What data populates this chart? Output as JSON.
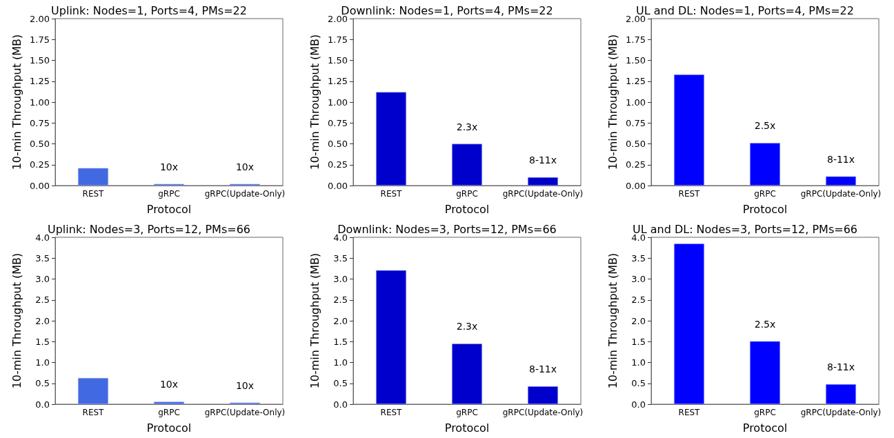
{
  "chart_data": [
    {
      "type": "bar",
      "title": "Uplink: Nodes=1, Ports=4, PMs=22",
      "xlabel": "Protocol",
      "ylabel": "10-min Throughput (MB)",
      "categories": [
        "REST",
        "gRPC",
        "gRPC(Update-Only)"
      ],
      "values": [
        0.21,
        0.02,
        0.02
      ],
      "color": "#4169e1",
      "ylim": [
        0,
        2
      ],
      "yticks": [
        {
          "value": 0,
          "label": "0.00"
        },
        {
          "value": 0.25,
          "label": "0.25"
        },
        {
          "value": 0.5,
          "label": "0.50"
        },
        {
          "value": 0.75,
          "label": "0.75"
        },
        {
          "value": 1,
          "label": "1.00"
        },
        {
          "value": 1.25,
          "label": "1.25"
        },
        {
          "value": 1.5,
          "label": "1.50"
        },
        {
          "value": 1.75,
          "label": "1.75"
        },
        {
          "value": 2,
          "label": "2.00"
        }
      ],
      "grid": false,
      "annotations": [
        "10x",
        "10x"
      ]
    },
    {
      "type": "bar",
      "title": "Downlink: Nodes=1, Ports=4, PMs=22",
      "xlabel": "Protocol",
      "ylabel": "10-min Throughput (MB)",
      "categories": [
        "REST",
        "gRPC",
        "gRPC(Update-Only)"
      ],
      "values": [
        1.12,
        0.5,
        0.1
      ],
      "color": "#0000cd",
      "ylim": [
        0,
        2
      ],
      "yticks": [
        {
          "value": 0,
          "label": "0.00"
        },
        {
          "value": 0.25,
          "label": "0.25"
        },
        {
          "value": 0.5,
          "label": "0.50"
        },
        {
          "value": 0.75,
          "label": "0.75"
        },
        {
          "value": 1,
          "label": "1.00"
        },
        {
          "value": 1.25,
          "label": "1.25"
        },
        {
          "value": 1.5,
          "label": "1.50"
        },
        {
          "value": 1.75,
          "label": "1.75"
        },
        {
          "value": 2,
          "label": "2.00"
        }
      ],
      "grid": false,
      "annotations": [
        "2.3x",
        "8-11x"
      ]
    },
    {
      "type": "bar",
      "title": "UL and DL: Nodes=1, Ports=4, PMs=22",
      "xlabel": "Protocol",
      "ylabel": "10-min Throughput (MB)",
      "categories": [
        "REST",
        "gRPC",
        "gRPC(Update-Only)"
      ],
      "values": [
        1.33,
        0.51,
        0.11
      ],
      "color": "#0000ff",
      "ylim": [
        0,
        2
      ],
      "yticks": [
        {
          "value": 0,
          "label": "0.00"
        },
        {
          "value": 0.25,
          "label": "0.25"
        },
        {
          "value": 0.5,
          "label": "0.50"
        },
        {
          "value": 0.75,
          "label": "0.75"
        },
        {
          "value": 1,
          "label": "1.00"
        },
        {
          "value": 1.25,
          "label": "1.25"
        },
        {
          "value": 1.5,
          "label": "1.50"
        },
        {
          "value": 1.75,
          "label": "1.75"
        },
        {
          "value": 2,
          "label": "2.00"
        }
      ],
      "grid": false,
      "annotations": [
        "2.5x",
        "8-11x"
      ]
    },
    {
      "type": "bar",
      "title": "Uplink: Nodes=3, Ports=12, PMs=66",
      "xlabel": "Protocol",
      "ylabel": "10-min Throughput (MB)",
      "categories": [
        "REST",
        "gRPC",
        "gRPC(Update-Only)"
      ],
      "values": [
        0.63,
        0.06,
        0.04
      ],
      "color": "#4169e1",
      "ylim": [
        0,
        4
      ],
      "yticks": [
        {
          "value": 0,
          "label": "0.0"
        },
        0.5,
        {
          "value": 1,
          "label": "1.0"
        },
        1.5,
        {
          "value": 2,
          "label": "2.0"
        },
        2.5,
        {
          "value": 3,
          "label": "3.0"
        },
        3.5,
        {
          "value": 4,
          "label": "4.0"
        }
      ],
      "grid": false,
      "annotations": [
        "10x",
        "10x"
      ]
    },
    {
      "type": "bar",
      "title": "Downlink: Nodes=3, Ports=12, PMs=66",
      "xlabel": "Protocol",
      "ylabel": "10-min Throughput (MB)",
      "categories": [
        "REST",
        "gRPC",
        "gRPC(Update-Only)"
      ],
      "values": [
        3.21,
        1.45,
        0.43
      ],
      "color": "#0000cd",
      "ylim": [
        0,
        4
      ],
      "yticks": [
        {
          "value": 0,
          "label": "0.0"
        },
        0.5,
        {
          "value": 1,
          "label": "1.0"
        },
        1.5,
        {
          "value": 2,
          "label": "2.0"
        },
        2.5,
        {
          "value": 3,
          "label": "3.0"
        },
        3.5,
        {
          "value": 4,
          "label": "4.0"
        }
      ],
      "grid": false,
      "annotations": [
        "2.3x",
        "8-11x"
      ]
    },
    {
      "type": "bar",
      "title": "UL and DL: Nodes=3, Ports=12, PMs=66",
      "xlabel": "Protocol",
      "ylabel": "10-min Throughput (MB)",
      "categories": [
        "REST",
        "gRPC",
        "gRPC(Update-Only)"
      ],
      "values": [
        3.85,
        1.51,
        0.48
      ],
      "color": "#0000ff",
      "ylim": [
        0,
        4
      ],
      "yticks": [
        {
          "value": 0,
          "label": "0.0"
        },
        0.5,
        {
          "value": 1,
          "label": "1.0"
        },
        1.5,
        {
          "value": 2,
          "label": "2.0"
        },
        2.5,
        {
          "value": 3,
          "label": "3.0"
        },
        3.5,
        {
          "value": 4,
          "label": "4.0"
        }
      ],
      "grid": false,
      "annotations": [
        "2.5x",
        "8-11x"
      ]
    }
  ]
}
